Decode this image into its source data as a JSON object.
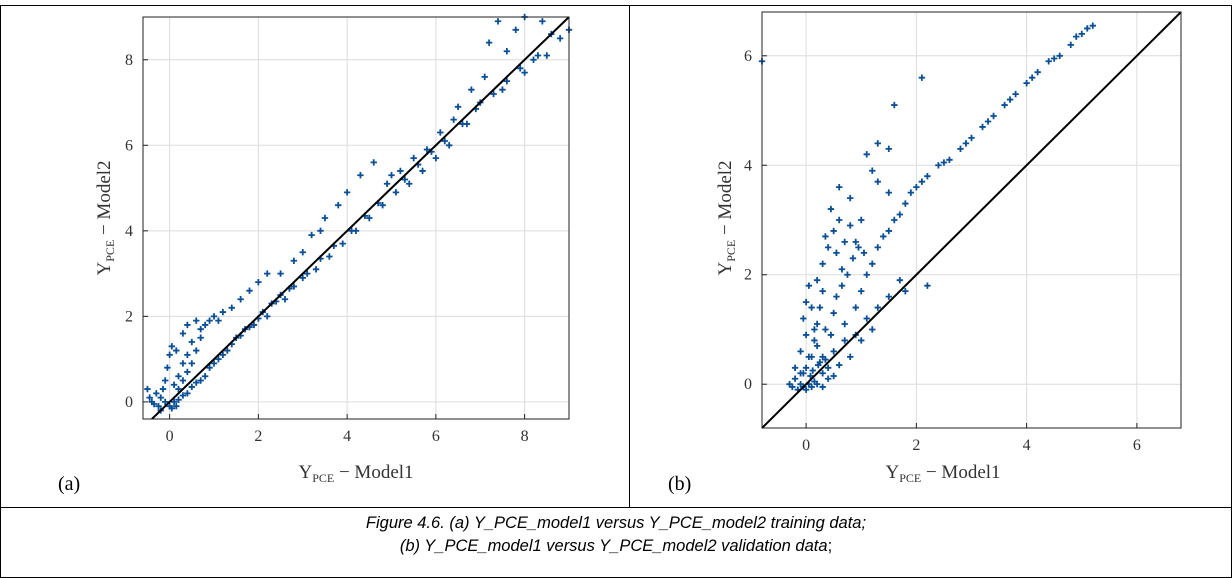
{
  "chart_data": [
    {
      "type": "scatter",
      "panel_label": "(a)",
      "xlabel_main": "Y",
      "xlabel_sub": "PCE",
      "xlabel_rest": " − Model1",
      "ylabel_main": "Y",
      "ylabel_sub": "PCE",
      "ylabel_rest": " − Model2",
      "xlim": [
        -0.6,
        9.0
      ],
      "ylim": [
        -0.4,
        9.0
      ],
      "xticks": [
        0,
        2,
        4,
        6,
        8
      ],
      "yticks": [
        0,
        2,
        4,
        6,
        8
      ],
      "grid": true,
      "reference_line": "y = x",
      "marker": "+",
      "color": "#0b4f96",
      "series": [
        {
          "points": [
            [
              -0.5,
              0.3
            ],
            [
              -0.45,
              0.1
            ],
            [
              -0.4,
              0.0
            ],
            [
              -0.35,
              -0.05
            ],
            [
              -0.3,
              0.2
            ],
            [
              -0.25,
              -0.1
            ],
            [
              -0.2,
              0.1
            ],
            [
              -0.15,
              0.3
            ],
            [
              -0.1,
              0.5
            ],
            [
              -0.05,
              0.8
            ],
            [
              0.0,
              1.1
            ],
            [
              0.05,
              1.3
            ],
            [
              0.0,
              -0.1
            ],
            [
              0.1,
              0.0
            ],
            [
              0.2,
              0.3
            ],
            [
              0.3,
              0.5
            ],
            [
              0.4,
              0.7
            ],
            [
              0.5,
              0.9
            ],
            [
              0.6,
              1.2
            ],
            [
              0.7,
              1.5
            ],
            [
              0.8,
              1.8
            ],
            [
              0.6,
              1.9
            ],
            [
              0.9,
              1.9
            ],
            [
              1.0,
              2.0
            ],
            [
              1.1,
              1.9
            ],
            [
              1.2,
              2.1
            ],
            [
              0.2,
              0.05
            ],
            [
              0.3,
              0.15
            ],
            [
              0.5,
              0.35
            ],
            [
              0.7,
              0.5
            ],
            [
              0.9,
              0.8
            ],
            [
              1.1,
              1.0
            ],
            [
              1.3,
              1.2
            ],
            [
              1.5,
              1.5
            ],
            [
              1.7,
              1.7
            ],
            [
              1.9,
              1.8
            ],
            [
              2.1,
              2.1
            ],
            [
              2.3,
              2.3
            ],
            [
              2.5,
              2.5
            ],
            [
              1.4,
              2.2
            ],
            [
              1.6,
              2.4
            ],
            [
              1.8,
              2.6
            ],
            [
              2.0,
              2.8
            ],
            [
              2.2,
              3.0
            ],
            [
              2.5,
              3.0
            ],
            [
              2.8,
              3.3
            ],
            [
              3.0,
              3.5
            ],
            [
              3.2,
              3.9
            ],
            [
              3.5,
              4.3
            ],
            [
              3.8,
              4.6
            ],
            [
              4.0,
              4.9
            ],
            [
              4.3,
              5.3
            ],
            [
              4.6,
              5.6
            ],
            [
              2.6,
              2.4
            ],
            [
              2.8,
              2.7
            ],
            [
              3.0,
              2.9
            ],
            [
              3.3,
              3.1
            ],
            [
              3.6,
              3.4
            ],
            [
              3.9,
              3.7
            ],
            [
              4.2,
              4.0
            ],
            [
              4.5,
              4.3
            ],
            [
              4.8,
              4.6
            ],
            [
              5.1,
              4.9
            ],
            [
              5.4,
              5.1
            ],
            [
              5.7,
              5.4
            ],
            [
              6.0,
              5.7
            ],
            [
              6.3,
              6.0
            ],
            [
              4.9,
              5.1
            ],
            [
              5.2,
              5.4
            ],
            [
              5.5,
              5.7
            ],
            [
              5.8,
              5.9
            ],
            [
              6.1,
              6.3
            ],
            [
              6.4,
              6.6
            ],
            [
              6.7,
              6.5
            ],
            [
              7.0,
              7.0
            ],
            [
              7.3,
              7.2
            ],
            [
              7.6,
              7.5
            ],
            [
              7.9,
              7.8
            ],
            [
              8.2,
              8.0
            ],
            [
              8.5,
              8.1
            ],
            [
              8.8,
              8.5
            ],
            [
              7.2,
              8.4
            ],
            [
              7.4,
              8.9
            ],
            [
              7.8,
              8.7
            ],
            [
              8.0,
              9.0
            ],
            [
              8.4,
              8.9
            ],
            [
              8.6,
              8.6
            ],
            [
              9.0,
              8.7
            ],
            [
              7.6,
              8.2
            ],
            [
              6.5,
              6.9
            ],
            [
              6.8,
              7.3
            ],
            [
              7.1,
              7.6
            ],
            [
              5.0,
              5.3
            ],
            [
              3.4,
              4.0
            ],
            [
              2.2,
              2.0
            ],
            [
              0.4,
              0.2
            ],
            [
              0.6,
              0.45
            ],
            [
              0.8,
              0.6
            ],
            [
              1.0,
              0.9
            ],
            [
              1.2,
              1.1
            ],
            [
              1.4,
              1.35
            ],
            [
              1.6,
              1.55
            ],
            [
              1.8,
              1.75
            ],
            [
              2.0,
              1.95
            ],
            [
              2.4,
              2.35
            ],
            [
              2.7,
              2.65
            ],
            [
              3.1,
              3.0
            ],
            [
              3.4,
              3.35
            ],
            [
              3.7,
              3.65
            ],
            [
              4.1,
              4.0
            ],
            [
              4.4,
              4.35
            ],
            [
              4.7,
              4.65
            ],
            [
              5.3,
              5.2
            ],
            [
              5.6,
              5.55
            ],
            [
              5.9,
              5.85
            ],
            [
              6.2,
              6.1
            ],
            [
              6.6,
              6.5
            ],
            [
              6.9,
              6.85
            ],
            [
              7.5,
              7.3
            ],
            [
              8.0,
              7.7
            ],
            [
              8.3,
              8.1
            ],
            [
              0.1,
              0.4
            ],
            [
              0.2,
              0.6
            ],
            [
              0.3,
              0.9
            ],
            [
              0.4,
              1.1
            ],
            [
              0.5,
              1.4
            ],
            [
              0.7,
              1.7
            ],
            [
              0.3,
              1.6
            ],
            [
              0.4,
              1.8
            ],
            [
              0.15,
              1.2
            ],
            [
              -0.1,
              0.0
            ],
            [
              0.05,
              -0.15
            ],
            [
              -0.2,
              -0.2
            ],
            [
              0.15,
              -0.1
            ]
          ]
        }
      ]
    },
    {
      "type": "scatter",
      "panel_label": "(b)",
      "xlabel_main": "Y",
      "xlabel_sub": "PCE",
      "xlabel_rest": " − Model1",
      "ylabel_main": "Y",
      "ylabel_sub": "PCE",
      "ylabel_rest": " − Model2",
      "xlim": [
        -0.8,
        6.8
      ],
      "ylim": [
        -0.8,
        6.8
      ],
      "xticks": [
        0,
        2,
        4,
        6
      ],
      "yticks": [
        0,
        2,
        4,
        6
      ],
      "grid": true,
      "reference_line": "y = x",
      "marker": "+",
      "color": "#0b4f96",
      "series": [
        {
          "points": [
            [
              -0.8,
              5.9
            ],
            [
              -0.3,
              0.0
            ],
            [
              -0.25,
              -0.05
            ],
            [
              -0.2,
              0.1
            ],
            [
              -0.15,
              -0.1
            ],
            [
              -0.1,
              0.0
            ],
            [
              -0.05,
              0.2
            ],
            [
              0.0,
              -0.1
            ],
            [
              0.05,
              0.0
            ],
            [
              0.1,
              -0.05
            ],
            [
              0.15,
              0.05
            ],
            [
              -0.2,
              0.3
            ],
            [
              -0.1,
              0.6
            ],
            [
              0.0,
              0.9
            ],
            [
              -0.05,
              1.2
            ],
            [
              0.0,
              1.5
            ],
            [
              0.05,
              1.8
            ],
            [
              0.1,
              1.4
            ],
            [
              0.15,
              1.0
            ],
            [
              0.2,
              0.7
            ],
            [
              0.25,
              0.4
            ],
            [
              0.3,
              0.2
            ],
            [
              0.4,
              0.1
            ],
            [
              0.2,
              1.9
            ],
            [
              0.3,
              2.2
            ],
            [
              0.4,
              2.5
            ],
            [
              0.5,
              2.8
            ],
            [
              0.6,
              3.0
            ],
            [
              0.45,
              3.2
            ],
            [
              0.35,
              2.7
            ],
            [
              0.55,
              2.4
            ],
            [
              0.7,
              2.6
            ],
            [
              0.8,
              2.9
            ],
            [
              0.65,
              2.1
            ],
            [
              0.3,
              1.7
            ],
            [
              0.5,
              1.3
            ],
            [
              0.7,
              1.1
            ],
            [
              0.9,
              1.4
            ],
            [
              1.0,
              1.7
            ],
            [
              1.1,
              2.0
            ],
            [
              1.2,
              2.2
            ],
            [
              1.3,
              2.5
            ],
            [
              1.4,
              2.7
            ],
            [
              1.5,
              2.8
            ],
            [
              1.6,
              3.0
            ],
            [
              1.7,
              3.1
            ],
            [
              1.8,
              3.3
            ],
            [
              1.9,
              3.5
            ],
            [
              2.0,
              3.6
            ],
            [
              2.2,
              3.8
            ],
            [
              2.4,
              4.0
            ],
            [
              2.6,
              4.1
            ],
            [
              2.8,
              4.3
            ],
            [
              3.0,
              4.5
            ],
            [
              3.2,
              4.7
            ],
            [
              3.4,
              4.9
            ],
            [
              3.6,
              5.1
            ],
            [
              3.8,
              5.3
            ],
            [
              4.0,
              5.5
            ],
            [
              4.2,
              5.7
            ],
            [
              4.4,
              5.9
            ],
            [
              4.6,
              6.0
            ],
            [
              4.8,
              6.2
            ],
            [
              5.0,
              6.4
            ],
            [
              5.1,
              6.5
            ],
            [
              5.2,
              6.55
            ],
            [
              4.9,
              6.35
            ],
            [
              4.5,
              5.95
            ],
            [
              4.1,
              5.6
            ],
            [
              3.7,
              5.2
            ],
            [
              3.3,
              4.8
            ],
            [
              2.9,
              4.4
            ],
            [
              2.5,
              4.05
            ],
            [
              2.1,
              3.7
            ],
            [
              1.1,
              4.2
            ],
            [
              1.3,
              4.4
            ],
            [
              1.5,
              4.3
            ],
            [
              1.2,
              3.9
            ],
            [
              1.3,
              3.7
            ],
            [
              1.5,
              3.5
            ],
            [
              1.6,
              5.1
            ],
            [
              2.1,
              5.6
            ],
            [
              0.9,
              2.6
            ],
            [
              1.0,
              3.0
            ],
            [
              0.8,
              3.4
            ],
            [
              0.6,
              3.6
            ],
            [
              1.8,
              1.7
            ],
            [
              2.2,
              1.8
            ],
            [
              0.3,
              0.5
            ],
            [
              0.5,
              0.6
            ],
            [
              0.7,
              0.8
            ],
            [
              0.9,
              0.9
            ],
            [
              1.1,
              1.2
            ],
            [
              1.3,
              1.4
            ],
            [
              1.5,
              1.6
            ],
            [
              1.7,
              1.9
            ],
            [
              0.4,
              0.3
            ],
            [
              0.6,
              0.35
            ],
            [
              0.8,
              0.5
            ],
            [
              1.0,
              0.8
            ],
            [
              1.2,
              1.0
            ],
            [
              0.1,
              0.5
            ],
            [
              0.15,
              0.8
            ],
            [
              0.2,
              1.1
            ],
            [
              0.25,
              1.4
            ],
            [
              0.35,
              1.0
            ],
            [
              0.45,
              0.9
            ],
            [
              0.55,
              1.6
            ],
            [
              0.65,
              1.8
            ],
            [
              0.75,
              2.0
            ],
            [
              0.85,
              2.3
            ],
            [
              0.95,
              2.5
            ],
            [
              1.05,
              2.4
            ],
            [
              0.0,
              0.3
            ],
            [
              -0.1,
              0.2
            ],
            [
              0.05,
              0.5
            ],
            [
              0.2,
              0.0
            ],
            [
              0.3,
              -0.05
            ],
            [
              0.5,
              0.15
            ],
            [
              0.12,
              0.25
            ],
            [
              0.22,
              0.35
            ],
            [
              0.08,
              0.15
            ],
            [
              -0.05,
              -0.05
            ],
            [
              0.35,
              0.45
            ]
          ]
        }
      ]
    }
  ],
  "caption": {
    "line1": "Figure 4.6. (a) Y_PCE_model1 versus Y_PCE_model2 training data;",
    "line2_main": "(b) Y_PCE_model1 versus Y_PCE_model2 validation data",
    "line2_end": ";"
  }
}
